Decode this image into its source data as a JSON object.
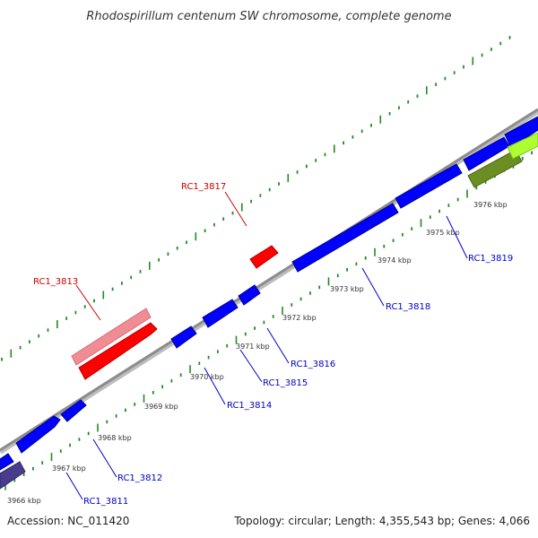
{
  "title": "Rhodospirillum centenum SW chromosome, complete genome",
  "footer": {
    "accession": "Accession: NC_011420",
    "summary": "Topology: circular; Length: 4,355,543 bp; Genes: 4,066"
  },
  "colors": {
    "backbone": "#8c8c8c",
    "tick": "#228b22",
    "forward_gene": "#0000ff",
    "reverse_gene": "#ff0000",
    "forward_label": "#0000cc",
    "reverse_label": "#cc0000"
  },
  "scale_labels": [
    "3966 kbp",
    "3967 kbp",
    "3968 kbp",
    "3969 kbp",
    "3970 kbp",
    "3971 kbp",
    "3972 kbp",
    "3973 kbp",
    "3974 kbp",
    "3975 kbp",
    "3976 kbp"
  ],
  "gene_labels": {
    "rc1_3811": "RC1_3811",
    "rc1_3812": "RC1_3812",
    "rc1_3813": "RC1_3813",
    "rc1_3814": "RC1_3814",
    "rc1_3815": "RC1_3815",
    "rc1_3816": "RC1_3816",
    "rc1_3817": "RC1_3817",
    "rc1_3818": "RC1_3818",
    "rc1_3819": "RC1_3819"
  }
}
